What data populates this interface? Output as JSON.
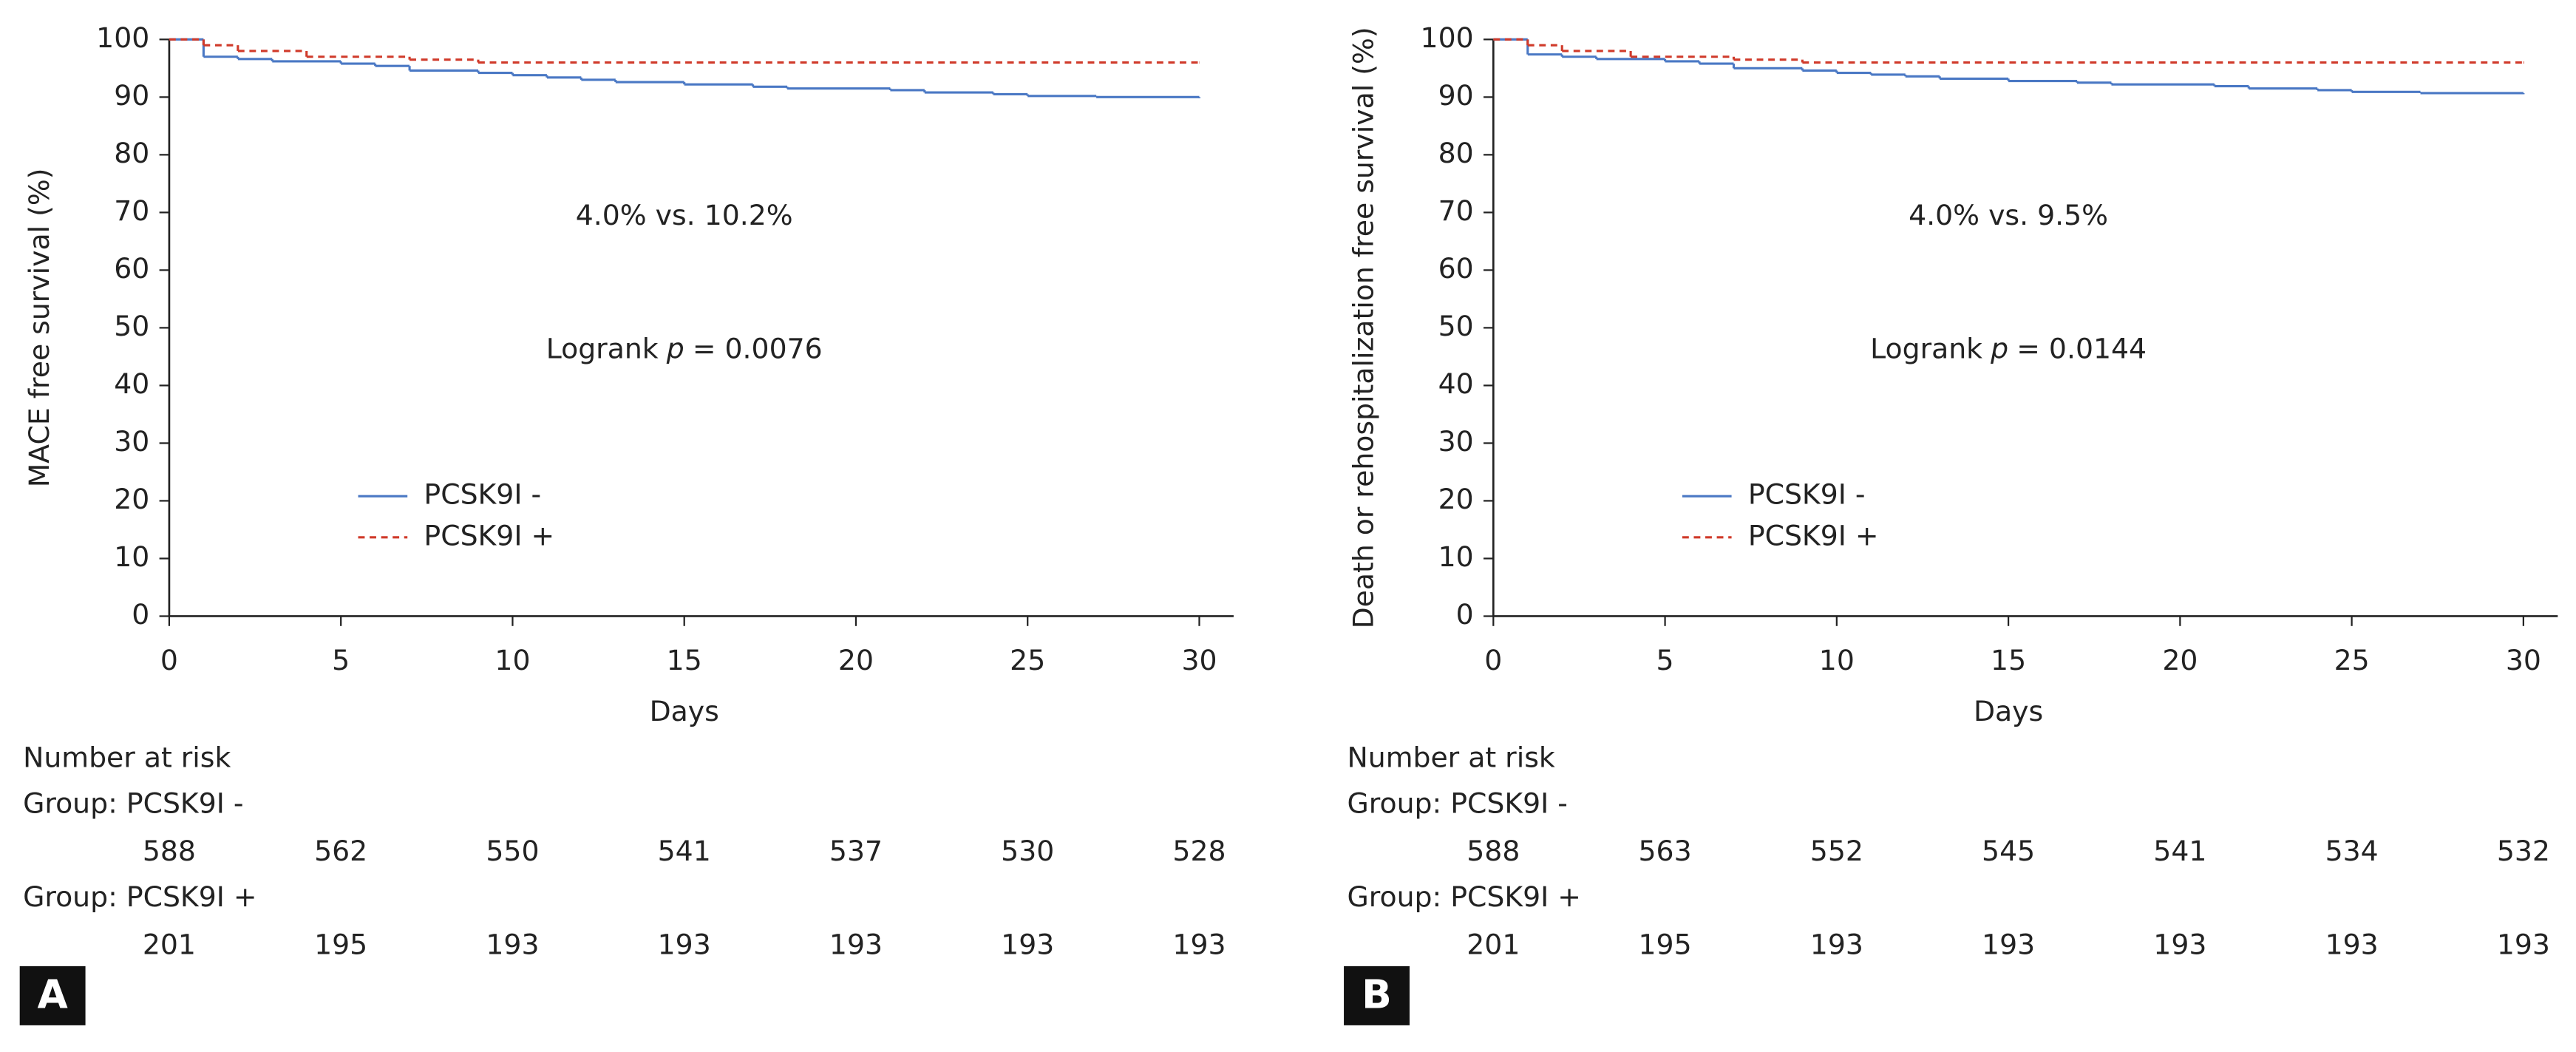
{
  "chart_data": [
    {
      "type": "line",
      "panel_label": "A",
      "x_label": "Days",
      "y_label": "MACE free survival (%)",
      "xlim": [
        0,
        31
      ],
      "xticks": [
        0,
        5,
        10,
        15,
        20,
        25,
        30
      ],
      "ylim": [
        0,
        100
      ],
      "yticks": [
        0,
        10,
        20,
        30,
        40,
        50,
        60,
        70,
        80,
        90,
        100
      ],
      "annotations": [
        "4.0% vs. 10.2%"
      ],
      "logrank": [
        "Logrank",
        "p",
        "= 0.0076"
      ],
      "legend": "lower left",
      "series": [
        {
          "name": "PCSK9I -",
          "color": "#4a78c4",
          "line_style": "solid",
          "x": [
            0,
            1,
            2,
            3,
            5,
            6,
            7,
            9,
            10,
            11,
            12,
            13,
            15,
            17,
            18,
            21,
            22,
            24,
            25,
            27,
            30
          ],
          "values": [
            100,
            97,
            96.6,
            96.2,
            95.8,
            95.4,
            94.6,
            94.2,
            93.8,
            93.4,
            93,
            92.6,
            92.2,
            91.8,
            91.5,
            91.2,
            90.8,
            90.5,
            90.2,
            90,
            89.8
          ]
        },
        {
          "name": "PCSK9I +",
          "color": "#d03a2a",
          "line_style": "dashed",
          "x": [
            0,
            1,
            2,
            4,
            7,
            9,
            30
          ],
          "values": [
            100,
            99,
            98,
            97,
            96.5,
            96,
            96
          ]
        }
      ],
      "risk_table": {
        "title": "Number at risk",
        "groups": [
          {
            "name": "Group: PCSK9I -",
            "counts": [
              588,
              562,
              550,
              541,
              537,
              530,
              528
            ]
          },
          {
            "name": "Group: PCSK9I +",
            "counts": [
              201,
              195,
              193,
              193,
              193,
              193,
              193
            ]
          }
        ]
      }
    },
    {
      "type": "line",
      "panel_label": "B",
      "x_label": "Days",
      "y_label": "Death or rehospitalization free survival (%)",
      "xlim": [
        0,
        31
      ],
      "xticks": [
        0,
        5,
        10,
        15,
        20,
        25,
        30
      ],
      "ylim": [
        0,
        100
      ],
      "yticks": [
        0,
        10,
        20,
        30,
        40,
        50,
        60,
        70,
        80,
        90,
        100
      ],
      "annotations": [
        "4.0% vs. 9.5%"
      ],
      "logrank": [
        "Logrank",
        "p",
        "= 0.0144"
      ],
      "legend": "lower left",
      "series": [
        {
          "name": "PCSK9I -",
          "color": "#4a78c4",
          "line_style": "solid",
          "x": [
            0,
            1,
            2,
            3,
            5,
            6,
            7,
            9,
            10,
            11,
            12,
            13,
            15,
            17,
            18,
            21,
            22,
            24,
            25,
            27,
            30
          ],
          "values": [
            100,
            97.4,
            97,
            96.6,
            96.2,
            95.8,
            95,
            94.6,
            94.2,
            93.9,
            93.6,
            93.2,
            92.8,
            92.5,
            92.2,
            91.9,
            91.5,
            91.2,
            90.9,
            90.7,
            90.5
          ]
        },
        {
          "name": "PCSK9I +",
          "color": "#d03a2a",
          "line_style": "dashed",
          "x": [
            0,
            1,
            2,
            4,
            7,
            9,
            30
          ],
          "values": [
            100,
            99,
            98,
            97,
            96.5,
            96,
            96
          ]
        }
      ],
      "risk_table": {
        "title": "Number at risk",
        "groups": [
          {
            "name": "Group: PCSK9I -",
            "counts": [
              588,
              563,
              552,
              545,
              541,
              534,
              532
            ]
          },
          {
            "name": "Group: PCSK9I +",
            "counts": [
              201,
              195,
              193,
              193,
              193,
              193,
              193
            ]
          }
        ]
      }
    }
  ]
}
